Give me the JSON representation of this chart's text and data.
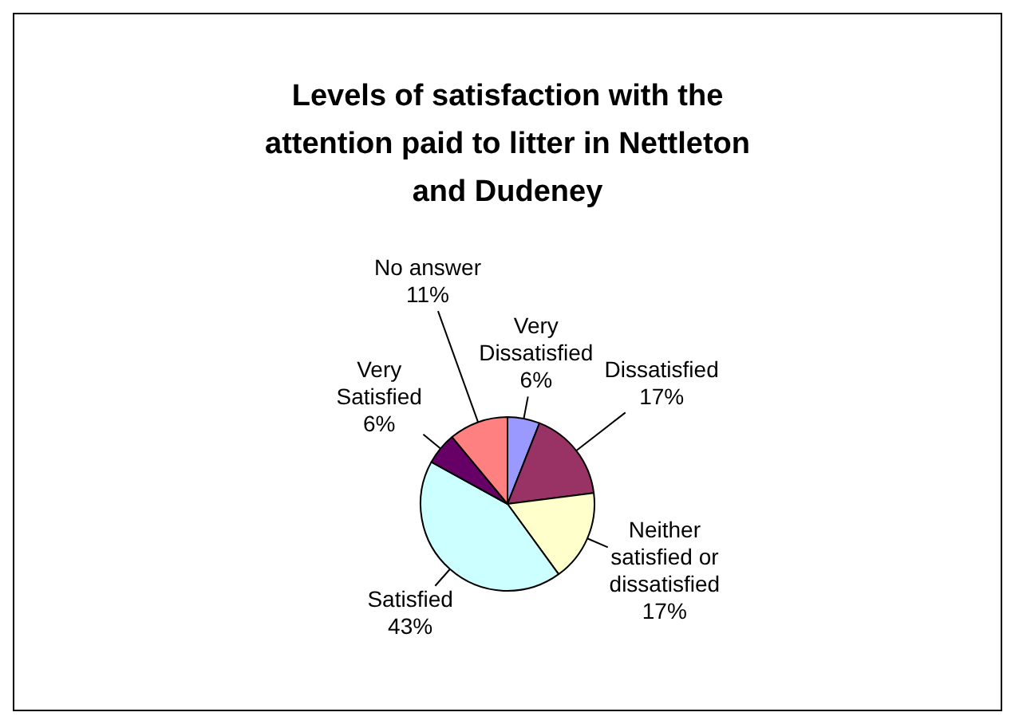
{
  "chart_data": {
    "type": "pie",
    "title": "Levels of satisfaction with the attention paid to litter in Nettleton and Dudeney",
    "categories": [
      "Very Dissatisfied",
      "Dissatisfied",
      "Neither satisfied or dissatisfied",
      "Satisfied",
      "Very Satisfied",
      "No answer"
    ],
    "values": [
      6,
      17,
      17,
      43,
      6,
      11
    ],
    "colors": [
      "#9999ff",
      "#993366",
      "#ffffcc",
      "#ccffff",
      "#660066",
      "#ff8080"
    ],
    "value_labels": [
      "6%",
      "17%",
      "17%",
      "43%",
      "6%",
      "11%"
    ],
    "legend": false
  }
}
